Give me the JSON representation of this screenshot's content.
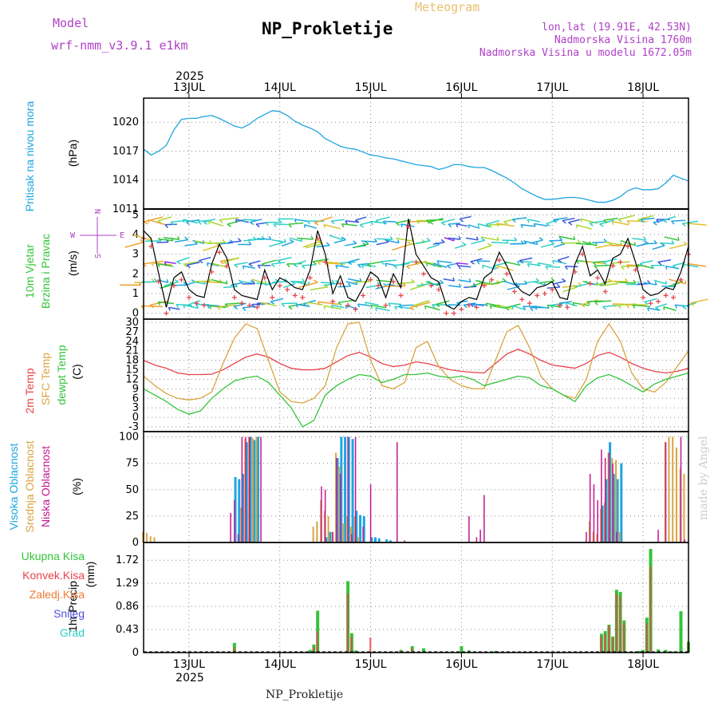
{
  "header": {
    "model_label": "Model",
    "model_name": "wrf-nmm_v3.9.1  e1km",
    "meteogram_label": "Meteogram",
    "title": "NP_Prokletije",
    "lonlat": "lon,lat (19.91E, 42.53N)",
    "altitude": "Nadmorska Visina 1760m",
    "model_altitude": "Nadmorska Visina u modelu 1672.05m",
    "watermark": "made by Angel",
    "footer": "NP_Prokletije"
  },
  "time_axis": {
    "year": "2025",
    "day_labels": [
      "13JUL",
      "14JUL",
      "15JUL",
      "16JUL",
      "17JUL",
      "18JUL"
    ],
    "start_hour": 12,
    "end_hour": 156
  },
  "colors": {
    "pressure": "#1ea5e0",
    "t2m": "#e8434b",
    "sfc": "#d9a441",
    "dewpt": "#33c43a",
    "cloud_high": "#1ea5e0",
    "cloud_mid": "#d9a441",
    "cloud_low": "#c2188e",
    "precip_total": "#33c43a",
    "precip_conv": "#e8434b",
    "precip_frozen": "#f07a35",
    "snow": "#5050e0",
    "hail": "#2fcfc8",
    "wind_label": "#33c43a",
    "compass": "#b040c8"
  },
  "chart_data": [
    {
      "type": "line",
      "panel": "pressure",
      "ylabel_main": "Pritisak na nivou mora",
      "unit": "(hPa)",
      "ylim": [
        1011,
        1022.5
      ],
      "yticks": [
        1011,
        1014,
        1017,
        1020
      ],
      "grid": true,
      "series": [
        {
          "x": [
            12,
            14,
            16,
            18,
            20,
            22,
            24,
            26,
            28,
            30,
            32,
            34,
            36,
            38,
            40,
            42,
            44,
            46,
            48,
            50,
            52,
            54,
            56,
            58,
            60,
            62,
            64,
            66,
            68,
            70,
            72,
            74,
            76,
            78,
            80,
            82,
            84,
            86,
            88,
            90,
            92,
            94,
            96,
            98,
            100,
            102,
            104,
            106,
            108,
            110,
            112,
            114,
            116,
            118,
            120,
            122,
            124,
            126,
            128,
            130,
            132,
            134,
            136,
            138,
            140,
            142,
            144,
            146,
            148,
            150,
            152,
            154,
            156
          ],
          "values": [
            1017.2,
            1016.6,
            1017.0,
            1017.6,
            1019.2,
            1020.3,
            1020.4,
            1020.4,
            1020.6,
            1020.7,
            1020.4,
            1020.0,
            1019.6,
            1019.4,
            1019.8,
            1020.4,
            1020.8,
            1021.2,
            1021.1,
            1020.7,
            1020.1,
            1019.7,
            1019.4,
            1019.0,
            1018.3,
            1017.9,
            1017.5,
            1017.3,
            1017.2,
            1016.9,
            1016.6,
            1016.5,
            1016.3,
            1016.2,
            1016.0,
            1015.8,
            1015.6,
            1015.5,
            1015.4,
            1015.1,
            1015.3,
            1015.6,
            1015.6,
            1015.4,
            1015.3,
            1015.3,
            1015.0,
            1014.6,
            1014.2,
            1013.7,
            1013.1,
            1012.7,
            1012.3,
            1012.0,
            1012.0,
            1012.1,
            1012.2,
            1012.2,
            1012.1,
            1011.9,
            1011.7,
            1011.7,
            1011.9,
            1012.3,
            1012.9,
            1013.2,
            1013.0,
            1013.0,
            1013.1,
            1013.7,
            1014.5,
            1014.2,
            1013.9
          ]
        }
      ]
    },
    {
      "type": "line",
      "panel": "wind",
      "ylabel_main": "10m Vjetar",
      "ylabel_sub": "Brzina i Pravac",
      "unit": "(m/s)",
      "compass": {
        "n": "N",
        "s": "S",
        "w": "W",
        "e": "E"
      },
      "ylim": [
        -0.3,
        5.3
      ],
      "yticks": [
        0,
        1,
        2,
        3,
        4,
        5
      ],
      "grid": true,
      "series": [
        {
          "name": "speed",
          "x": [
            12,
            14,
            16,
            18,
            20,
            22,
            24,
            26,
            28,
            30,
            32,
            34,
            36,
            38,
            40,
            42,
            44,
            46,
            48,
            50,
            52,
            54,
            56,
            58,
            60,
            62,
            64,
            66,
            68,
            70,
            72,
            74,
            76,
            78,
            80,
            82,
            84,
            86,
            88,
            90,
            92,
            94,
            96,
            98,
            100,
            102,
            104,
            106,
            108,
            110,
            112,
            114,
            116,
            118,
            120,
            122,
            124,
            126,
            128,
            130,
            132,
            134,
            136,
            138,
            140,
            142,
            144,
            146,
            148,
            150,
            152,
            154,
            156
          ],
          "values": [
            4.2,
            3.8,
            2.0,
            0.3,
            1.8,
            2.1,
            1.2,
            0.9,
            0.8,
            2.5,
            3.5,
            2.8,
            1.2,
            0.9,
            0.8,
            0.7,
            2.2,
            1.2,
            1.8,
            1.6,
            1.3,
            1.2,
            2.2,
            4.2,
            3.0,
            1.0,
            1.9,
            0.8,
            0.6,
            1.3,
            2.1,
            1.8,
            0.8,
            2.0,
            1.3,
            4.8,
            3.0,
            2.4,
            1.8,
            1.6,
            0.4,
            0.2,
            0.6,
            0.8,
            0.7,
            1.8,
            2.1,
            3.1,
            2.4,
            1.5,
            1.1,
            0.9,
            1.3,
            1.4,
            1.6,
            0.8,
            0.7,
            2.5,
            3.4,
            1.9,
            2.2,
            1.5,
            2.8,
            3.0,
            3.8,
            2.6,
            1.2,
            0.9,
            1.0,
            1.3,
            1.2,
            2.1,
            3.4
          ]
        }
      ]
    },
    {
      "type": "line",
      "panel": "temperature",
      "unit": "(C)",
      "ylim": [
        -4.5,
        31
      ],
      "yticks": [
        -3,
        0,
        3,
        6,
        9,
        12,
        15,
        18,
        21,
        24,
        27,
        30
      ],
      "grid": true,
      "series": [
        {
          "name": "2m Temp",
          "x": [
            12,
            15,
            18,
            21,
            24,
            27,
            30,
            33,
            36,
            39,
            42,
            45,
            48,
            51,
            54,
            57,
            60,
            63,
            66,
            69,
            72,
            75,
            78,
            81,
            84,
            87,
            90,
            93,
            96,
            99,
            102,
            105,
            108,
            111,
            114,
            117,
            120,
            123,
            126,
            129,
            132,
            135,
            138,
            141,
            144,
            147,
            150,
            153,
            156
          ],
          "values": [
            18.0,
            16.5,
            15.5,
            14.0,
            13.5,
            13.5,
            13.6,
            15.0,
            17.0,
            19.0,
            20.0,
            19.0,
            17.0,
            15.5,
            15.0,
            15.0,
            15.5,
            17.5,
            19.5,
            20.5,
            19.0,
            17.0,
            16.0,
            16.5,
            17.5,
            17.0,
            16.0,
            15.0,
            14.5,
            14.2,
            14.0,
            17.0,
            20.0,
            21.5,
            20.0,
            18.0,
            16.5,
            16.0,
            15.5,
            17.0,
            19.5,
            20.5,
            19.0,
            17.0,
            15.5,
            14.5,
            14.0,
            14.5,
            15.5
          ]
        },
        {
          "name": "SFC Temp",
          "x": [
            12,
            15,
            18,
            21,
            24,
            27,
            30,
            33,
            36,
            39,
            42,
            45,
            48,
            51,
            54,
            57,
            60,
            63,
            66,
            69,
            72,
            75,
            78,
            81,
            84,
            87,
            90,
            93,
            96,
            99,
            102,
            105,
            108,
            111,
            114,
            117,
            120,
            123,
            126,
            129,
            132,
            135,
            138,
            141,
            144,
            147,
            150,
            153,
            156
          ],
          "values": [
            13.0,
            10.0,
            7.5,
            6.0,
            5.5,
            6.0,
            8.0,
            17.0,
            25.0,
            29.5,
            28.0,
            18.0,
            8.0,
            5.0,
            4.5,
            6.0,
            10.0,
            22.0,
            29.5,
            30.0,
            18.0,
            10.0,
            9.0,
            11.0,
            22.0,
            24.0,
            16.0,
            12.0,
            10.0,
            9.0,
            9.0,
            18.0,
            27.0,
            29.0,
            22.0,
            13.0,
            9.0,
            7.0,
            6.0,
            12.0,
            24.0,
            29.5,
            24.0,
            14.0,
            9.0,
            8.0,
            11.0,
            16.0,
            21.0
          ]
        },
        {
          "name": "dewpt Temp",
          "x": [
            12,
            15,
            18,
            21,
            24,
            27,
            30,
            33,
            36,
            39,
            42,
            45,
            48,
            51,
            54,
            57,
            60,
            63,
            66,
            69,
            72,
            75,
            78,
            81,
            84,
            87,
            90,
            93,
            96,
            99,
            102,
            105,
            108,
            111,
            114,
            117,
            120,
            123,
            126,
            129,
            132,
            135,
            138,
            141,
            144,
            147,
            150,
            153,
            156
          ],
          "values": [
            9.0,
            7.0,
            5.0,
            2.5,
            1.0,
            2.0,
            6.0,
            9.0,
            11.5,
            12.5,
            13.0,
            11.0,
            7.0,
            3.0,
            -3.0,
            -1.0,
            7.0,
            10.0,
            12.0,
            13.5,
            13.0,
            11.0,
            12.0,
            13.5,
            13.5,
            14.0,
            13.0,
            12.5,
            13.0,
            12.0,
            10.0,
            11.0,
            12.0,
            13.0,
            12.5,
            10.0,
            9.0,
            7.0,
            5.0,
            10.0,
            12.5,
            13.5,
            12.0,
            10.0,
            8.0,
            10.5,
            12.0,
            13.0,
            14.0
          ]
        }
      ]
    },
    {
      "type": "bar",
      "panel": "clouds",
      "unit": "(%)",
      "ylim": [
        0,
        105
      ],
      "yticks": [
        0,
        25,
        50,
        75,
        100
      ],
      "grid": true,
      "series": [
        {
          "name": "Visoka Oblacnost",
          "x": [
            36,
            37,
            38,
            39,
            40,
            41,
            42,
            60,
            61,
            63,
            64,
            65,
            66,
            67,
            68,
            69,
            70,
            72,
            73,
            74,
            76,
            77,
            133,
            134,
            135,
            136,
            137,
            138
          ],
          "values": [
            62,
            60,
            65,
            95,
            100,
            97,
            100,
            5,
            10,
            80,
            100,
            100,
            100,
            98,
            30,
            26,
            25,
            5,
            5,
            4,
            3,
            2,
            35,
            60,
            95,
            65,
            60,
            75
          ]
        },
        {
          "name": "Srednja Oblacnost",
          "x": [
            12,
            13,
            14,
            15,
            38,
            39,
            40,
            41,
            42,
            57,
            58,
            59,
            60,
            61,
            62,
            63,
            64,
            65,
            66,
            67,
            68,
            69,
            130,
            131,
            132,
            133,
            134,
            135,
            136,
            137,
            138,
            150,
            151,
            152,
            153,
            154,
            155
          ],
          "values": [
            10,
            9,
            6,
            5,
            33,
            98,
            100,
            99,
            100,
            15,
            20,
            40,
            30,
            25,
            10,
            85,
            72,
            18,
            25,
            15,
            25,
            5,
            20,
            10,
            8,
            32,
            38,
            85,
            80,
            78,
            10,
            95,
            100,
            100,
            90,
            70,
            65
          ]
        },
        {
          "name": "Niska Oblacnost",
          "x": [
            35,
            36,
            37,
            38,
            39,
            40,
            43,
            59,
            60,
            62,
            63,
            64,
            66,
            67,
            68,
            70,
            72,
            79,
            81,
            98,
            100,
            101,
            102,
            129,
            130,
            131,
            132,
            133,
            134,
            135,
            136,
            137,
            148,
            150,
            154,
            155
          ],
          "values": [
            28,
            40,
            8,
            100,
            100,
            100,
            100,
            53,
            50,
            10,
            80,
            65,
            100,
            8,
            100,
            15,
            55,
            95,
            2,
            25,
            5,
            12,
            45,
            10,
            65,
            55,
            40,
            88,
            80,
            85,
            75,
            10,
            12,
            95,
            100,
            3
          ]
        }
      ]
    },
    {
      "type": "bar",
      "panel": "precip",
      "ylabel_main": "1hr Precip",
      "unit": "(mm)",
      "legend": [
        "Ukupna Kisa",
        "Konvek.Kisa",
        "Zaledj.Kisa",
        "Snijeg",
        "Grad"
      ],
      "ylim": [
        0,
        2.05
      ],
      "yticks": [
        0,
        0.43,
        0.86,
        1.29,
        1.72
      ],
      "grid": true,
      "series": [
        {
          "name": "Ukupna Kisa",
          "x": [
            36,
            56,
            57,
            58,
            66,
            67,
            68,
            80,
            83,
            86,
            96,
            98,
            105,
            133,
            134,
            135,
            136,
            137,
            138,
            139,
            143,
            144,
            145,
            146,
            148,
            150,
            152,
            154,
            156
          ],
          "values": [
            0.18,
            0.05,
            0.15,
            0.78,
            1.33,
            0.36,
            0.04,
            0.05,
            0.12,
            0.08,
            0.12,
            0.04,
            0.03,
            0.35,
            0.4,
            0.52,
            0.3,
            1.17,
            1.13,
            0.6,
            0.03,
            0.05,
            0.65,
            1.93,
            0.06,
            0.05,
            0.02,
            0.77,
            0.2
          ]
        },
        {
          "name": "Konvek.Kisa",
          "x": [
            36,
            57,
            58,
            66,
            67,
            72,
            80,
            83,
            133,
            134,
            135,
            136,
            137,
            138,
            139,
            145,
            146,
            156
          ],
          "values": [
            0.1,
            0.1,
            0.4,
            1.1,
            0.3,
            0.28,
            0.03,
            0.08,
            0.3,
            0.35,
            0.5,
            0.28,
            1.1,
            1.05,
            0.55,
            0.55,
            1.6,
            0.18
          ]
        }
      ]
    }
  ]
}
